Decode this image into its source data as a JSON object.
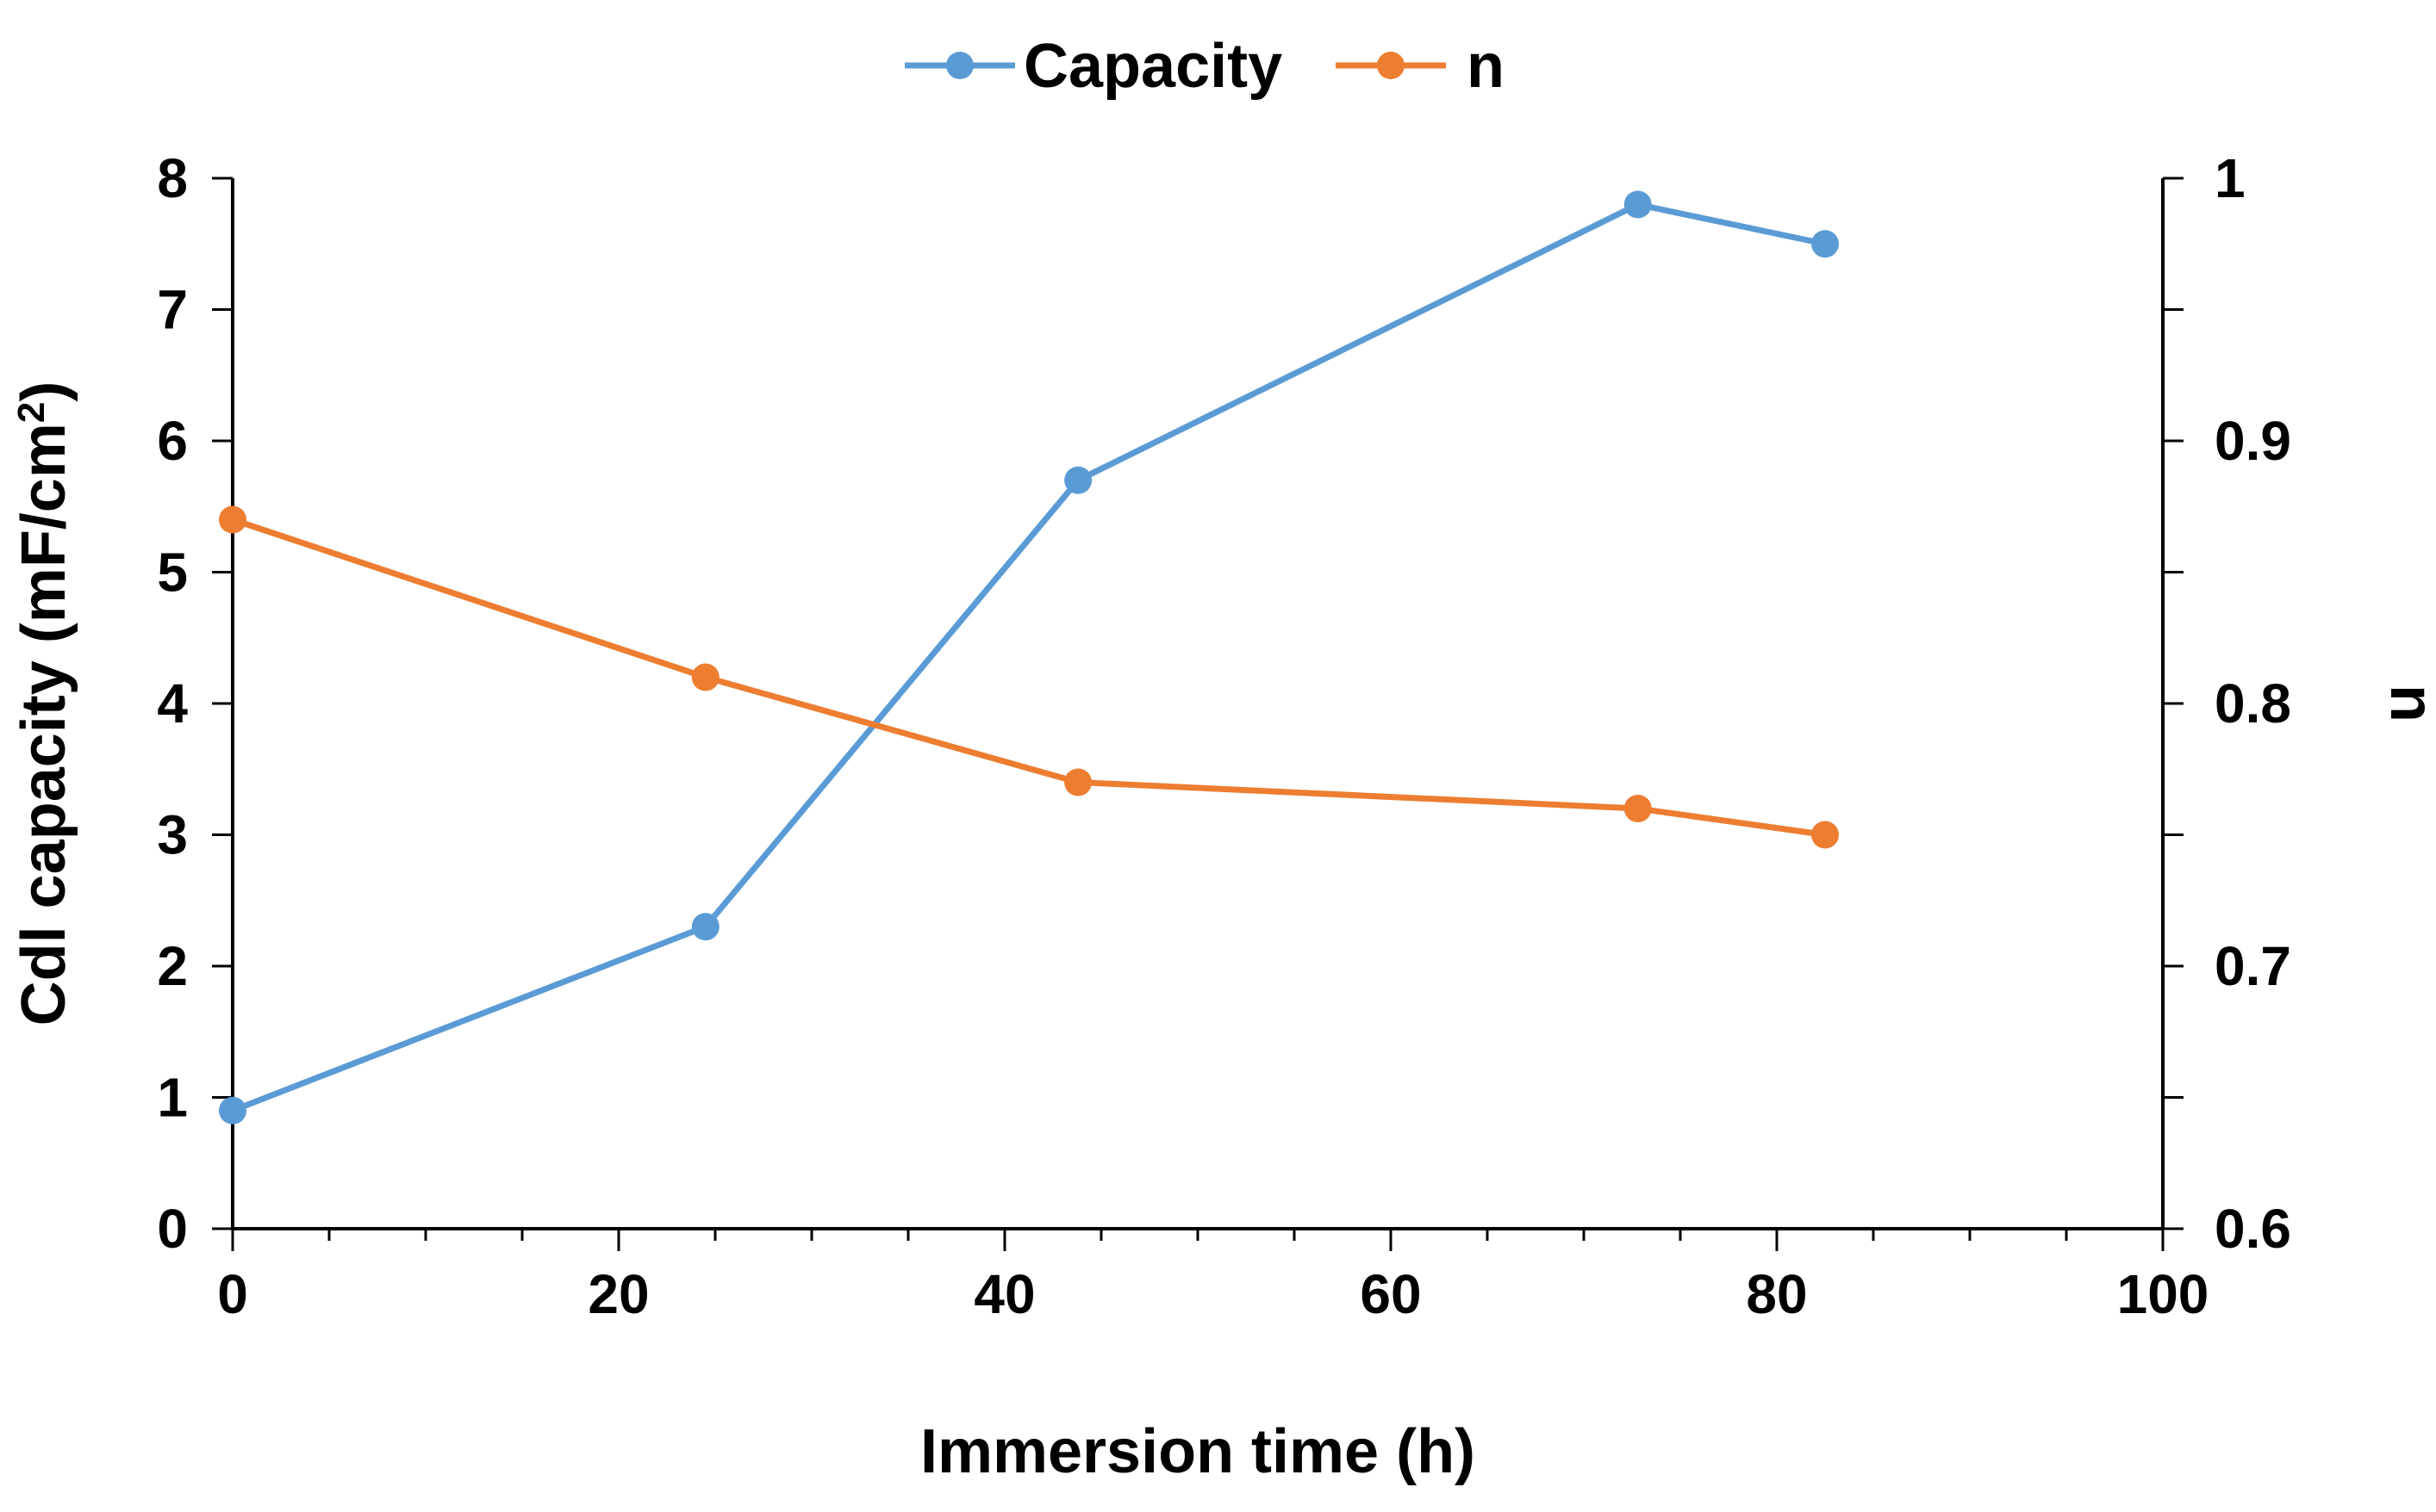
{
  "chart_data": {
    "type": "line",
    "title": "",
    "xlabel": "Immersion time (h)",
    "ylabel": "Cdl capacity (mF/cm",
    "ylabel_sup": "2",
    "ylabel_end": ")",
    "y2label": "n",
    "xlim": [
      0,
      100
    ],
    "ylim": [
      0,
      8
    ],
    "y2lim": [
      0.6,
      1.0
    ],
    "x_ticks": [
      "0",
      "20",
      "40",
      "60",
      "80",
      "100"
    ],
    "y_ticks": [
      "0",
      "1",
      "2",
      "3",
      "4",
      "5",
      "6",
      "7",
      "8"
    ],
    "y2_ticks": [
      "0.6",
      "0.7",
      "0.8",
      "0.9",
      "1"
    ],
    "legend_position": "top-center",
    "series": [
      {
        "name": "Capacity",
        "axis": "left",
        "color": "#5B9BD5",
        "x": [
          0,
          24.5,
          43.8,
          72.8,
          82.5
        ],
        "y": [
          0.9,
          2.3,
          5.7,
          7.8,
          7.5
        ]
      },
      {
        "name": "n",
        "axis": "right",
        "color": "#ED7D31",
        "x": [
          0,
          24.5,
          43.8,
          72.8,
          82.5
        ],
        "y": [
          0.87,
          0.81,
          0.77,
          0.76,
          0.75
        ]
      }
    ]
  }
}
